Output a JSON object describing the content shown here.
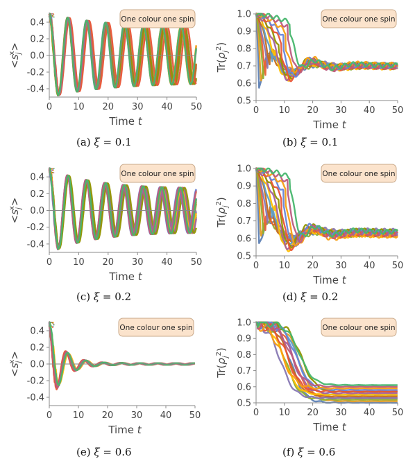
{
  "figure": {
    "colors": [
      "#5e81b5",
      "#e19c24",
      "#8fb032",
      "#eb6235",
      "#8778b3",
      "#c56e1a",
      "#5d9ec7",
      "#ffbf00",
      "#a5609d",
      "#929600",
      "#e95536",
      "#6685d9",
      "#f89f13",
      "#bc5b80",
      "#47b66d"
    ],
    "legend_bg": "#fbe3cc",
    "legend_border": "#c9a98a"
  },
  "chart_data": [
    {
      "type": "line",
      "title": "",
      "caption": "(a) ξ = 0.1",
      "legend": "One colour one spin",
      "xlabel": "Time t",
      "ylabel": "<s_j^x>",
      "xlim": [
        0,
        50
      ],
      "ylim": [
        -0.5,
        0.5
      ],
      "xticks": [
        "0",
        "10",
        "20",
        "30",
        "40",
        "50"
      ],
      "yticks": [
        "-0.4",
        "-0.2",
        "0.0",
        "0.2",
        "0.4"
      ],
      "series_summary": {
        "count": 15,
        "kind": "oscillation",
        "period": 6.5,
        "amplitude_start": 0.5,
        "amplitude_end": 0.33,
        "relaxation_time": 60
      },
      "grid": false
    },
    {
      "type": "line",
      "title": "",
      "caption": "(b) ξ = 0.1",
      "legend": "One colour one spin",
      "xlabel": "Time t",
      "ylabel": "Tr(ρ_j^2)",
      "xlim": [
        0,
        50
      ],
      "ylim": [
        0.5,
        1.0
      ],
      "xticks": [
        "0",
        "10",
        "20",
        "30",
        "40",
        "50"
      ],
      "yticks": [
        "0.5",
        "0.6",
        "0.7",
        "0.8",
        "0.9",
        "1.0"
      ],
      "series_summary": {
        "count": 15,
        "kind": "purity",
        "minimum_range": [
          0.56,
          0.95
        ],
        "minimum_time_range": [
          1,
          12
        ],
        "final_value": 0.7,
        "final_spread": 0.02
      },
      "grid": false
    },
    {
      "type": "line",
      "title": "",
      "caption": "(c) ξ = 0.2",
      "legend": "One colour one spin",
      "xlabel": "Time t",
      "ylabel": "<s_j^x>",
      "xlim": [
        0,
        50
      ],
      "ylim": [
        -0.5,
        0.5
      ],
      "xticks": [
        "0",
        "10",
        "20",
        "30",
        "40",
        "50"
      ],
      "yticks": [
        "-0.4",
        "-0.2",
        "0.0",
        "0.2",
        "0.4"
      ],
      "series_summary": {
        "count": 15,
        "kind": "oscillation",
        "period": 6.4,
        "amplitude_start": 0.5,
        "amplitude_end": 0.26,
        "relaxation_time": 45
      },
      "grid": false
    },
    {
      "type": "line",
      "title": "",
      "caption": "(d) ξ = 0.2",
      "legend": "One colour one spin",
      "xlabel": "Time t",
      "ylabel": "Tr(ρ_j^2)",
      "xlim": [
        0,
        50
      ],
      "ylim": [
        0.5,
        1.0
      ],
      "xticks": [
        "0",
        "10",
        "20",
        "30",
        "40",
        "50"
      ],
      "yticks": [
        "0.5",
        "0.6",
        "0.7",
        "0.8",
        "0.9",
        "1.0"
      ],
      "series_summary": {
        "count": 15,
        "kind": "purity",
        "minimum_range": [
          0.56,
          0.95
        ],
        "minimum_time_range": [
          1,
          12
        ],
        "final_value": 0.63,
        "final_spread": 0.03
      },
      "grid": false
    },
    {
      "type": "line",
      "title": "",
      "caption": "(e) ξ = 0.6",
      "legend": "One colour one spin",
      "xlabel": "Time t",
      "ylabel": "<s_j^x>",
      "xlim": [
        0,
        50
      ],
      "ylim": [
        -0.5,
        0.5
      ],
      "xticks": [
        "0",
        "10",
        "20",
        "30",
        "40",
        "50"
      ],
      "yticks": [
        "-0.4",
        "-0.2",
        "0.0",
        "0.2",
        "0.4"
      ],
      "series_summary": {
        "count": 15,
        "kind": "oscillation",
        "period": 6.2,
        "amplitude_start": 0.5,
        "amplitude_end": 0.01,
        "relaxation_time": 14
      },
      "grid": false
    },
    {
      "type": "line",
      "title": "",
      "caption": "(f) ξ = 0.6",
      "legend": "One colour one spin",
      "xlabel": "Time t",
      "ylabel": "Tr(ρ_j^2)",
      "xlim": [
        0,
        50
      ],
      "ylim": [
        0.5,
        1.0
      ],
      "xticks": [
        "0",
        "10",
        "20",
        "30",
        "40",
        "50"
      ],
      "yticks": [
        "0.5",
        "0.6",
        "0.7",
        "0.8",
        "0.9",
        "1.0"
      ],
      "series_summary": {
        "count": 15,
        "kind": "purity",
        "final_values": [
          0.5,
          0.51,
          0.52,
          0.53,
          0.53,
          0.54,
          0.55,
          0.55,
          0.56,
          0.57,
          0.57,
          0.58,
          0.59,
          0.6,
          0.61
        ],
        "decay_time_range": [
          8,
          16
        ]
      },
      "grid": false
    }
  ]
}
